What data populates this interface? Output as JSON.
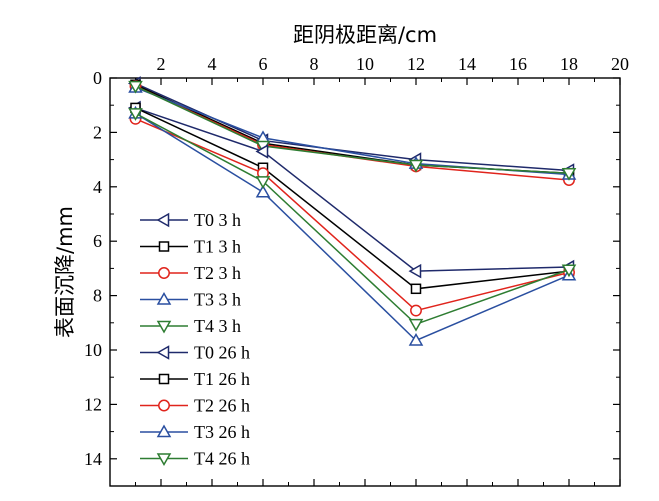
{
  "chart_data": {
    "type": "line",
    "xlabel": "距阴极距离/cm",
    "ylabel": "表面沉降/mm",
    "xlim": [
      0,
      20
    ],
    "ylim": [
      0,
      15
    ],
    "y_inverted": true,
    "x_axis_position": "top",
    "x_ticks": [
      2,
      4,
      6,
      8,
      10,
      12,
      14,
      16,
      18,
      20
    ],
    "y_ticks": [
      0,
      2,
      4,
      6,
      8,
      10,
      12,
      14
    ],
    "grid": false,
    "legend_position": "left",
    "x": [
      1,
      6,
      12,
      18
    ],
    "series": [
      {
        "name": "T0 3 h",
        "color": "#1f2a6b",
        "marker": "triangle-left",
        "values": [
          0.2,
          2.3,
          3.0,
          3.4
        ]
      },
      {
        "name": "T1 3 h",
        "color": "#000000",
        "marker": "square",
        "values": [
          0.25,
          2.4,
          3.2,
          3.5
        ]
      },
      {
        "name": "T2 3 h",
        "color": "#e0241c",
        "marker": "circle",
        "values": [
          0.3,
          2.45,
          3.25,
          3.75
        ]
      },
      {
        "name": "T3 3 h",
        "color": "#2a4fa0",
        "marker": "triangle-up",
        "values": [
          0.35,
          2.2,
          3.15,
          3.55
        ]
      },
      {
        "name": "T4 3 h",
        "color": "#2e7d32",
        "marker": "triangle-down",
        "values": [
          0.3,
          2.5,
          3.2,
          3.5
        ]
      },
      {
        "name": "T0 26 h",
        "color": "#1f2a6b",
        "marker": "triangle-left",
        "values": [
          1.1,
          2.7,
          7.1,
          6.95
        ]
      },
      {
        "name": "T1 26 h",
        "color": "#000000",
        "marker": "square",
        "values": [
          1.1,
          3.3,
          7.75,
          7.1
        ]
      },
      {
        "name": "T2 26 h",
        "color": "#e0241c",
        "marker": "circle",
        "values": [
          1.5,
          3.5,
          8.55,
          7.15
        ]
      },
      {
        "name": "T3 26 h",
        "color": "#2a4fa0",
        "marker": "triangle-up",
        "values": [
          1.3,
          4.2,
          9.65,
          7.25
        ]
      },
      {
        "name": "T4 26 h",
        "color": "#2e7d32",
        "marker": "triangle-down",
        "values": [
          1.3,
          3.8,
          9.05,
          7.05
        ]
      }
    ]
  }
}
